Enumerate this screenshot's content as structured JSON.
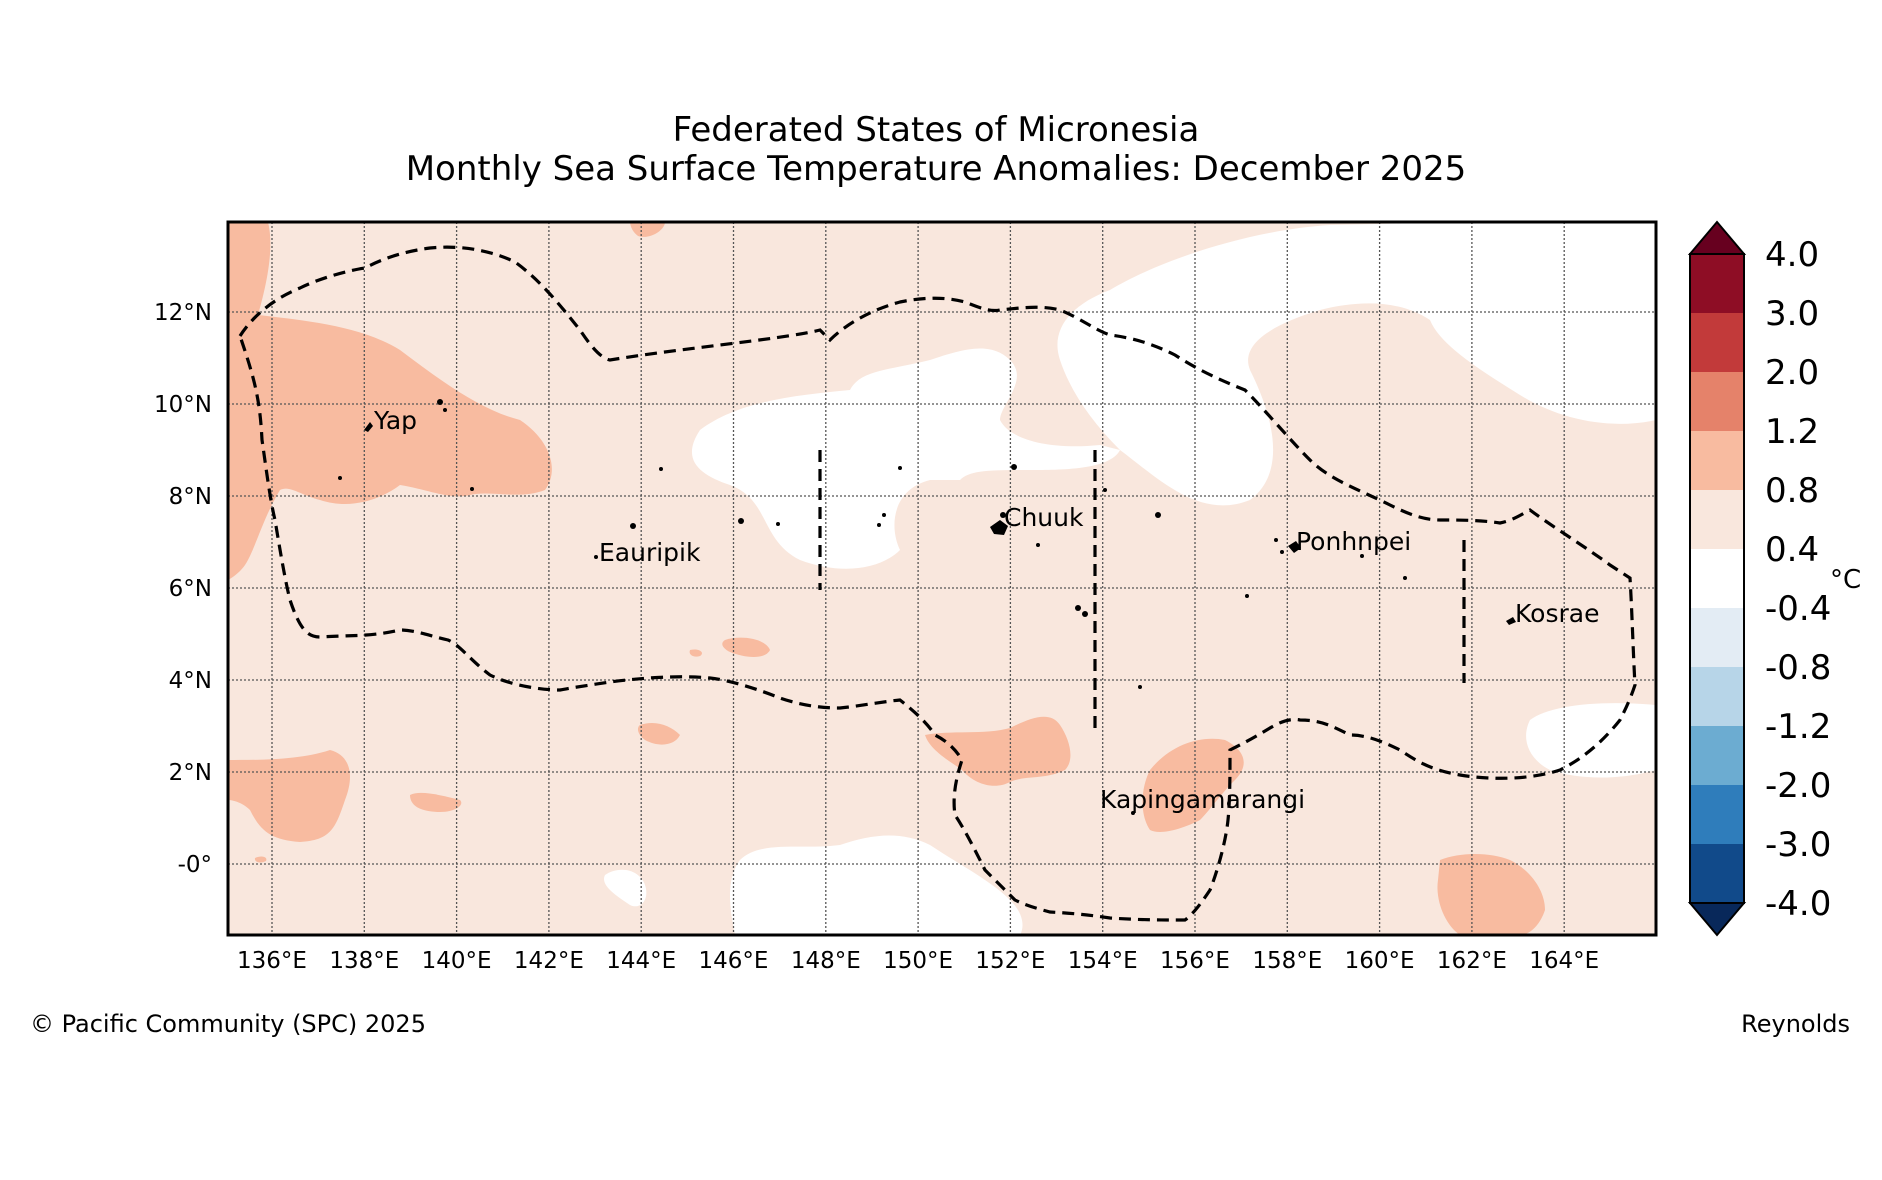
{
  "title": {
    "line1": "Federated States of Micronesia",
    "line2": "Monthly Sea Surface Temperature Anomalies: December 2025"
  },
  "footer": {
    "copyright": "© Pacific Community (SPC) 2025",
    "source": "Reynolds"
  },
  "map": {
    "lon_ticks": [
      "136°E",
      "138°E",
      "140°E",
      "142°E",
      "144°E",
      "146°E",
      "148°E",
      "150°E",
      "152°E",
      "154°E",
      "156°E",
      "158°E",
      "160°E",
      "162°E",
      "164°E"
    ],
    "lat_ticks": [
      "12°N",
      "10°N",
      "8°N",
      "6°N",
      "4°N",
      "2°N",
      "-0°"
    ],
    "places": [
      {
        "name": "Yap"
      },
      {
        "name": "Eauripik"
      },
      {
        "name": "Chuuk"
      },
      {
        "name": "Ponhnpei"
      },
      {
        "name": "Kosrae"
      },
      {
        "name": "Kapingamarangi"
      }
    ]
  },
  "colorbar": {
    "unit": "°C",
    "labels": [
      "4.0",
      "3.0",
      "2.0",
      "1.2",
      "0.8",
      "0.4",
      "-0.4",
      "-0.8",
      "-1.2",
      "-2.0",
      "-3.0",
      "-4.0"
    ],
    "colors": [
      "#67001f",
      "#8e0d25",
      "#c23a3a",
      "#e5826a",
      "#f8bba0",
      "#f9e7dd",
      "#ffffff",
      "#e3ecf4",
      "#b7d5e8",
      "#6cacd1",
      "#2f7dbb",
      "#114a8a",
      "#08285a"
    ]
  },
  "colors": {
    "background_anomaly": "#f9e7dd",
    "warm_anomaly": "#f8bba0",
    "neutral": "#ffffff"
  }
}
